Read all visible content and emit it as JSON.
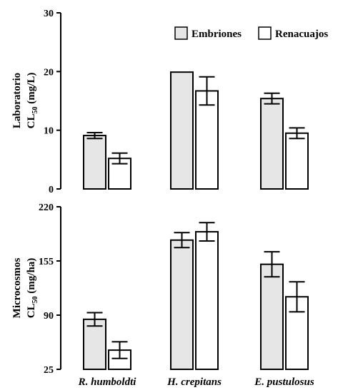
{
  "chart_data": [
    {
      "type": "bar",
      "ylabel_lines": [
        "Laboratorio",
        "CL",
        "50",
        " (mg/L)"
      ],
      "ylim": [
        0,
        30
      ],
      "yticks": [
        "0",
        "10",
        "20",
        "30"
      ],
      "categories": [
        "R. humboldti",
        "H. crepitans",
        "E. pustulosus"
      ],
      "series": [
        {
          "name": "Embriones",
          "color": "#e6e6e6",
          "values": [
            9.1,
            19.9,
            15.4
          ],
          "errors": [
            0.5,
            0,
            0.9
          ]
        },
        {
          "name": "Renacuajos",
          "color": "#ffffff",
          "values": [
            5.2,
            16.7,
            9.5
          ],
          "errors": [
            0.9,
            2.4,
            0.9
          ]
        }
      ],
      "legend": "top-right"
    },
    {
      "type": "bar",
      "ylabel_lines": [
        "Microcosmos",
        "CL",
        "50",
        " (mg/ha)"
      ],
      "ylim": [
        25,
        220
      ],
      "yticks": [
        "25",
        "90",
        "155",
        "220"
      ],
      "categories": [
        "R. humboldti",
        "H. crepitans",
        "E. pustulosus"
      ],
      "series": [
        {
          "name": "Embriones",
          "color": "#e6e6e6",
          "values": [
            85,
            180,
            151
          ],
          "errors": [
            8,
            9,
            15
          ]
        },
        {
          "name": "Renacuajos",
          "color": "#ffffff",
          "values": [
            48,
            190,
            112
          ],
          "errors": [
            10,
            11,
            18
          ]
        }
      ]
    }
  ]
}
